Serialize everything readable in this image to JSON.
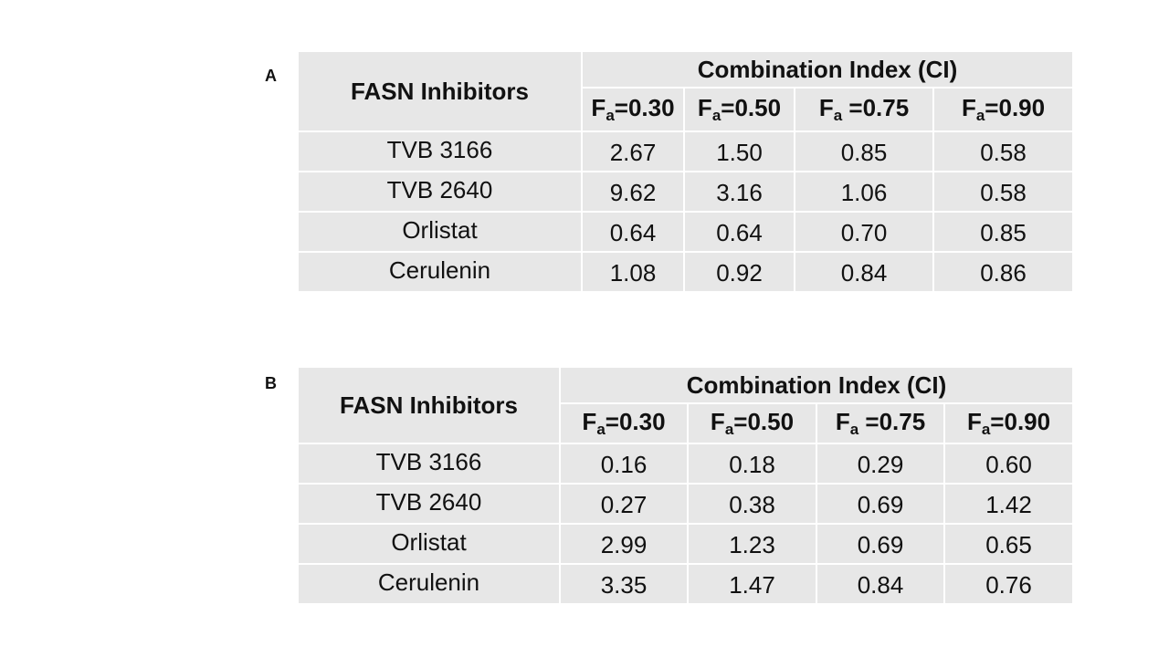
{
  "tables": [
    {
      "label": "A",
      "drug_header": "FASN Inhibitors",
      "group_header": "Combination Index (CI)",
      "fa_columns": [
        {
          "main": "F",
          "sub": "a",
          "rest": "=0.30"
        },
        {
          "main": "F",
          "sub": "a",
          "rest": "=0.50"
        },
        {
          "main": "F",
          "sub": "a",
          "rest": " =0.75"
        },
        {
          "main": "F",
          "sub": "a",
          "rest": "=0.90"
        }
      ],
      "rows": [
        {
          "name": "TVB 3166",
          "values": [
            "2.67",
            "1.50",
            "0.85",
            "0.58"
          ]
        },
        {
          "name": "TVB 2640",
          "values": [
            "9.62",
            "3.16",
            "1.06",
            "0.58"
          ]
        },
        {
          "name": "Orlistat",
          "values": [
            "0.64",
            "0.64",
            "0.70",
            "0.85"
          ]
        },
        {
          "name": "Cerulenin",
          "values": [
            "1.08",
            "0.92",
            "0.84",
            "0.86"
          ]
        }
      ]
    },
    {
      "label": "B",
      "drug_header": "FASN Inhibitors",
      "group_header": "Combination Index (CI)",
      "fa_columns": [
        {
          "main": "F",
          "sub": "a",
          "rest": "=0.30"
        },
        {
          "main": "F",
          "sub": "a",
          "rest": "=0.50"
        },
        {
          "main": "F",
          "sub": "a",
          "rest": " =0.75"
        },
        {
          "main": "F",
          "sub": "a",
          "rest": "=0.90"
        }
      ],
      "rows": [
        {
          "name": "TVB 3166",
          "values": [
            "0.16",
            "0.18",
            "0.29",
            "0.60"
          ]
        },
        {
          "name": "TVB 2640",
          "values": [
            "0.27",
            "0.38",
            "0.69",
            "1.42"
          ]
        },
        {
          "name": "Orlistat",
          "values": [
            "2.99",
            "1.23",
            "0.69",
            "0.65"
          ]
        },
        {
          "name": "Cerulenin",
          "values": [
            "3.35",
            "1.47",
            "0.84",
            "0.76"
          ]
        }
      ]
    }
  ]
}
